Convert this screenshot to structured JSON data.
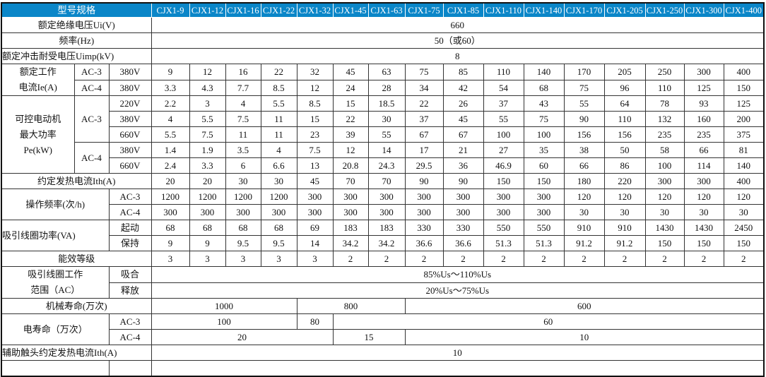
{
  "table": {
    "colors": {
      "header_bg": "#0a86c8",
      "header_text": "#ffffff"
    },
    "rows": [
      {
        "type": "header",
        "cells": [
          {
            "text": "型号规格",
            "cs": 3
          },
          {
            "text": "CJX1-9"
          },
          {
            "text": "CJX1-12"
          },
          {
            "text": "CJX1-16"
          },
          {
            "text": "CJX1-22"
          },
          {
            "text": "CJX1-32"
          },
          {
            "text": "CJX1-45"
          },
          {
            "text": "CJX1-63"
          },
          {
            "text": "CJX1-75"
          },
          {
            "text": "CJX1-85"
          },
          {
            "text": "CJX1-110"
          },
          {
            "text": "CJX1-140"
          },
          {
            "text": "CJX1-170"
          },
          {
            "text": "CJX1-205"
          },
          {
            "text": "CJX1-250"
          },
          {
            "text": "CJX1-300"
          },
          {
            "text": "CJX1-400"
          }
        ]
      },
      {
        "cells": [
          {
            "text": "额定绝缘电压Ui(V)",
            "cs": 3
          },
          {
            "text": "660",
            "cs": 16
          }
        ]
      },
      {
        "cells": [
          {
            "text": "频率(Hz)",
            "cs": 3
          },
          {
            "text": "50（或60）",
            "cs": 16
          }
        ]
      },
      {
        "cells": [
          {
            "text": "额定冲击耐受电压Uimp(kV)",
            "cs": 3,
            "left": true
          },
          {
            "text": "8",
            "cs": 16
          }
        ]
      },
      {
        "cells": [
          {
            "text": "额定工作\n电流Ie(A)",
            "rs": 2
          },
          {
            "text": "AC-3"
          },
          {
            "text": "380V"
          },
          {
            "text": "9"
          },
          {
            "text": "12"
          },
          {
            "text": "16"
          },
          {
            "text": "22"
          },
          {
            "text": "32"
          },
          {
            "text": "45"
          },
          {
            "text": "63"
          },
          {
            "text": "75"
          },
          {
            "text": "85"
          },
          {
            "text": "110"
          },
          {
            "text": "140"
          },
          {
            "text": "170"
          },
          {
            "text": "205"
          },
          {
            "text": "250"
          },
          {
            "text": "300"
          },
          {
            "text": "400"
          }
        ]
      },
      {
        "cells": [
          {
            "text": "AC-4"
          },
          {
            "text": "380V"
          },
          {
            "text": "3.3"
          },
          {
            "text": "4.3"
          },
          {
            "text": "7.7"
          },
          {
            "text": "8.5"
          },
          {
            "text": "12"
          },
          {
            "text": "24"
          },
          {
            "text": "28"
          },
          {
            "text": "34"
          },
          {
            "text": "42"
          },
          {
            "text": "54"
          },
          {
            "text": "68"
          },
          {
            "text": "75"
          },
          {
            "text": "96"
          },
          {
            "text": "110"
          },
          {
            "text": "125"
          },
          {
            "text": "150"
          }
        ]
      },
      {
        "cells": [
          {
            "text": "可控电动机\n最大功率\nPe(kW)",
            "rs": 5
          },
          {
            "text": "AC-3",
            "rs": 3
          },
          {
            "text": "220V"
          },
          {
            "text": "2.2"
          },
          {
            "text": "3"
          },
          {
            "text": "4"
          },
          {
            "text": "5.5"
          },
          {
            "text": "8.5"
          },
          {
            "text": "15"
          },
          {
            "text": "18.5"
          },
          {
            "text": "22"
          },
          {
            "text": "26"
          },
          {
            "text": "37"
          },
          {
            "text": "43"
          },
          {
            "text": "55"
          },
          {
            "text": "64"
          },
          {
            "text": "78"
          },
          {
            "text": "93"
          },
          {
            "text": "125"
          }
        ]
      },
      {
        "cells": [
          {
            "text": "380V"
          },
          {
            "text": "4"
          },
          {
            "text": "5.5"
          },
          {
            "text": "7.5"
          },
          {
            "text": "11"
          },
          {
            "text": "15"
          },
          {
            "text": "22"
          },
          {
            "text": "30"
          },
          {
            "text": "37"
          },
          {
            "text": "45"
          },
          {
            "text": "55"
          },
          {
            "text": "75"
          },
          {
            "text": "90"
          },
          {
            "text": "110"
          },
          {
            "text": "132"
          },
          {
            "text": "160"
          },
          {
            "text": "200"
          }
        ]
      },
      {
        "cells": [
          {
            "text": "660V"
          },
          {
            "text": "5.5"
          },
          {
            "text": "7.5"
          },
          {
            "text": "11"
          },
          {
            "text": "11"
          },
          {
            "text": "23"
          },
          {
            "text": "39"
          },
          {
            "text": "55"
          },
          {
            "text": "67"
          },
          {
            "text": "67"
          },
          {
            "text": "100"
          },
          {
            "text": "100"
          },
          {
            "text": "156"
          },
          {
            "text": "156"
          },
          {
            "text": "235"
          },
          {
            "text": "235"
          },
          {
            "text": "375"
          }
        ]
      },
      {
        "cells": [
          {
            "text": "AC-4",
            "rs": 2
          },
          {
            "text": "380V"
          },
          {
            "text": "1.4"
          },
          {
            "text": "1.9"
          },
          {
            "text": "3.5"
          },
          {
            "text": "4"
          },
          {
            "text": "7.5"
          },
          {
            "text": "12"
          },
          {
            "text": "14"
          },
          {
            "text": "17"
          },
          {
            "text": "21"
          },
          {
            "text": "27"
          },
          {
            "text": "35"
          },
          {
            "text": "38"
          },
          {
            "text": "50"
          },
          {
            "text": "58"
          },
          {
            "text": "66"
          },
          {
            "text": "81"
          }
        ]
      },
      {
        "cells": [
          {
            "text": "660V"
          },
          {
            "text": "2.4"
          },
          {
            "text": "3.3"
          },
          {
            "text": "6"
          },
          {
            "text": "6.6"
          },
          {
            "text": "13"
          },
          {
            "text": "20.8"
          },
          {
            "text": "24.3"
          },
          {
            "text": "29.5"
          },
          {
            "text": "36"
          },
          {
            "text": "46.9"
          },
          {
            "text": "60"
          },
          {
            "text": "66"
          },
          {
            "text": "86"
          },
          {
            "text": "100"
          },
          {
            "text": "114"
          },
          {
            "text": "140"
          }
        ]
      },
      {
        "cells": [
          {
            "text": "约定发热电流Ith(A)",
            "cs": 3
          },
          {
            "text": "20"
          },
          {
            "text": "20"
          },
          {
            "text": "30"
          },
          {
            "text": "30"
          },
          {
            "text": "45"
          },
          {
            "text": "70"
          },
          {
            "text": "70"
          },
          {
            "text": "90"
          },
          {
            "text": "90"
          },
          {
            "text": "150"
          },
          {
            "text": "150"
          },
          {
            "text": "180"
          },
          {
            "text": "220"
          },
          {
            "text": "300"
          },
          {
            "text": "300"
          },
          {
            "text": "400"
          }
        ]
      },
      {
        "cells": [
          {
            "text": "操作频率(次/h)",
            "cs": 2,
            "rs": 2
          },
          {
            "text": "AC-3"
          },
          {
            "text": "1200"
          },
          {
            "text": "1200"
          },
          {
            "text": "1200"
          },
          {
            "text": "1200"
          },
          {
            "text": "300"
          },
          {
            "text": "300"
          },
          {
            "text": "300"
          },
          {
            "text": "300"
          },
          {
            "text": "300"
          },
          {
            "text": "300"
          },
          {
            "text": "300"
          },
          {
            "text": "120"
          },
          {
            "text": "120"
          },
          {
            "text": "120"
          },
          {
            "text": "120"
          },
          {
            "text": "120"
          }
        ]
      },
      {
        "cells": [
          {
            "text": "AC-4"
          },
          {
            "text": "300"
          },
          {
            "text": "300"
          },
          {
            "text": "300"
          },
          {
            "text": "300"
          },
          {
            "text": "300"
          },
          {
            "text": "300"
          },
          {
            "text": "300"
          },
          {
            "text": "300"
          },
          {
            "text": "300"
          },
          {
            "text": "300"
          },
          {
            "text": "300"
          },
          {
            "text": "30"
          },
          {
            "text": "30"
          },
          {
            "text": "30"
          },
          {
            "text": "30"
          },
          {
            "text": "30"
          }
        ]
      },
      {
        "cells": [
          {
            "text": "吸引线圈功率(VA)",
            "cs": 2,
            "rs": 2,
            "left": true
          },
          {
            "text": "起动"
          },
          {
            "text": "68"
          },
          {
            "text": "68"
          },
          {
            "text": "68"
          },
          {
            "text": "68"
          },
          {
            "text": "69"
          },
          {
            "text": "183"
          },
          {
            "text": "183"
          },
          {
            "text": "330"
          },
          {
            "text": "330"
          },
          {
            "text": "550"
          },
          {
            "text": "550"
          },
          {
            "text": "910"
          },
          {
            "text": "910"
          },
          {
            "text": "1430"
          },
          {
            "text": "1430"
          },
          {
            "text": "2450"
          }
        ]
      },
      {
        "cells": [
          {
            "text": "保持"
          },
          {
            "text": "9"
          },
          {
            "text": "9"
          },
          {
            "text": "9.5"
          },
          {
            "text": "9.5"
          },
          {
            "text": "14"
          },
          {
            "text": "34.2"
          },
          {
            "text": "34.2"
          },
          {
            "text": "36.6"
          },
          {
            "text": "36.6"
          },
          {
            "text": "51.3"
          },
          {
            "text": "51.3"
          },
          {
            "text": "91.2"
          },
          {
            "text": "91.2"
          },
          {
            "text": "150"
          },
          {
            "text": "150"
          },
          {
            "text": "150"
          }
        ]
      },
      {
        "cells": [
          {
            "text": "能效等级",
            "cs": 3
          },
          {
            "text": "3"
          },
          {
            "text": "3"
          },
          {
            "text": "3"
          },
          {
            "text": "3"
          },
          {
            "text": "3"
          },
          {
            "text": "2"
          },
          {
            "text": "2"
          },
          {
            "text": "2"
          },
          {
            "text": "2"
          },
          {
            "text": "2"
          },
          {
            "text": "2"
          },
          {
            "text": "2"
          },
          {
            "text": "2"
          },
          {
            "text": "2"
          },
          {
            "text": "2"
          },
          {
            "text": "2"
          }
        ]
      },
      {
        "cells": [
          {
            "text": "吸引线圈工作\n范围（AC）",
            "cs": 2,
            "rs": 2
          },
          {
            "text": "吸合"
          },
          {
            "text": "85%Us～110%Us",
            "cs": 16
          }
        ]
      },
      {
        "cells": [
          {
            "text": "释放"
          },
          {
            "text": "20%Us～75%Us",
            "cs": 16
          }
        ]
      },
      {
        "cells": [
          {
            "text": "机械寿命(万次)",
            "cs": 3
          },
          {
            "text": "1000",
            "cs": 4
          },
          {
            "text": "800",
            "cs": 3
          },
          {
            "text": "600",
            "cs": 9
          }
        ]
      },
      {
        "cells": [
          {
            "text": "电寿命（万次）",
            "cs": 2,
            "rs": 2
          },
          {
            "text": "AC-3"
          },
          {
            "text": "100",
            "cs": 4
          },
          {
            "text": "80"
          },
          {
            "text": "60",
            "cs": 11
          }
        ]
      },
      {
        "cells": [
          {
            "text": "AC-4"
          },
          {
            "text": "20",
            "cs": 5
          },
          {
            "text": "15",
            "cs": 2
          },
          {
            "text": "10",
            "cs": 9
          }
        ]
      },
      {
        "cells": [
          {
            "text": "辅助触头约定发热电流Ith(A)",
            "cs": 3,
            "left": true
          },
          {
            "text": "10",
            "cs": 16
          }
        ]
      },
      {
        "cells": [
          {
            "text": "",
            "cs": 2
          },
          {
            "text": ""
          },
          {
            "text": "",
            "cs": 16
          }
        ]
      }
    ]
  }
}
